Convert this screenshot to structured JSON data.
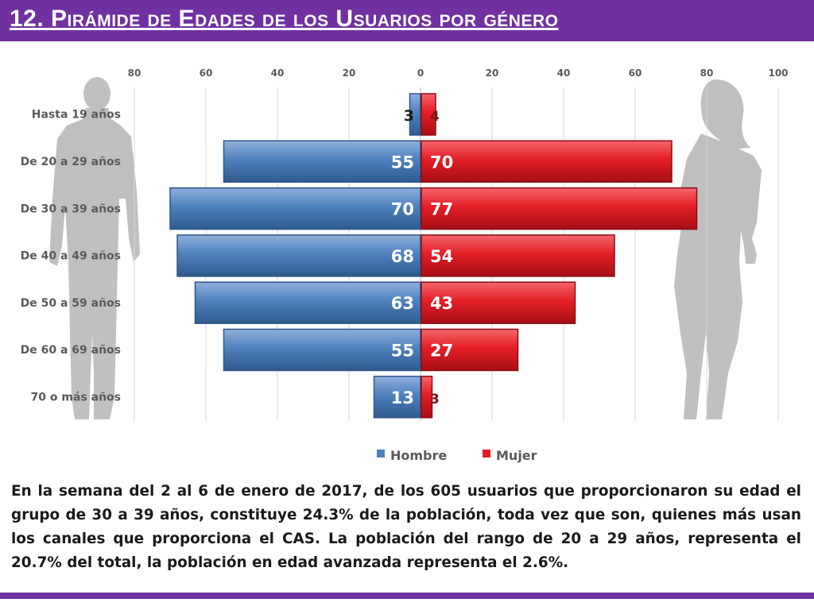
{
  "title": "12. Pirámide de Edades de los Usuarios por género",
  "description": "En la semana del 2 al 6 de enero de 2017, de los 605 usuarios  que proporcionaron su edad el grupo de 30 a 39 años,  constituye 24.3% de la población, toda vez que son, quienes más usan los canales que proporciona el CAS. La población del rango de 20 a 29 años, representa el 20.7% del total, la población en edad avanzada representa el 2.6%.",
  "colors": {
    "header": "#7030a0",
    "hombre": "#4f81bd",
    "mujer": "#e41e26",
    "silhouette": "#b3b3b3"
  },
  "icons": [
    "man-silhouette-icon",
    "woman-silhouette-icon"
  ],
  "chart_data": {
    "type": "bar",
    "orientation": "horizontal",
    "style": "population-pyramid",
    "categories": [
      "Hasta 19 años",
      "De 20 a 29 años",
      "De 30 a 39 años",
      "De 40 a 49 años",
      "De 50 a 59 años",
      "De 60 a 69 años",
      "70 o más años"
    ],
    "series": [
      {
        "name": "Hombre",
        "values": [
          3,
          55,
          70,
          68,
          63,
          55,
          13
        ],
        "color": "#4f81bd",
        "side": "left"
      },
      {
        "name": "Mujer",
        "values": [
          4,
          70,
          77,
          54,
          43,
          27,
          3
        ],
        "color": "#e41e26",
        "side": "right"
      }
    ],
    "x_ticks": [
      "80",
      "60",
      "40",
      "20",
      "0",
      "20",
      "40",
      "60",
      "80",
      "100"
    ],
    "xlim": [
      -80,
      100
    ],
    "grid": true,
    "legend": "bottom"
  }
}
